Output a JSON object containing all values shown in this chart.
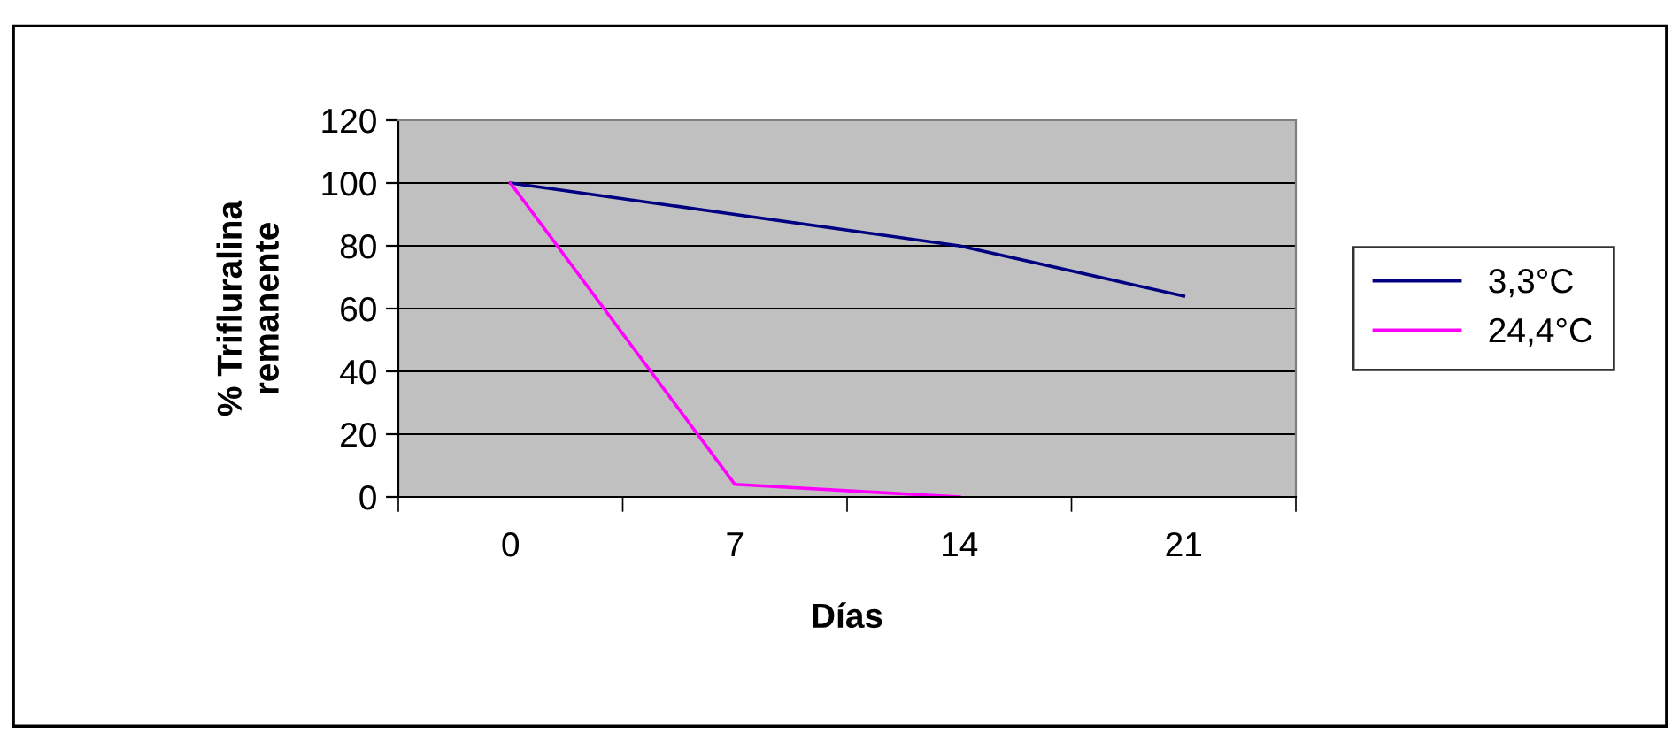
{
  "chart_data": {
    "type": "line",
    "xlabel": "Días",
    "ylabel": "% Trifluralina\nremanente",
    "categories": [
      "0",
      "7",
      "14",
      "21"
    ],
    "series": [
      {
        "name": "3,3°C",
        "color": "#000080",
        "values": [
          100,
          90,
          80,
          64
        ]
      },
      {
        "name": "24,4°C",
        "color": "#ff00ff",
        "values": [
          100,
          4,
          0,
          null
        ]
      }
    ],
    "ylim": [
      0,
      120
    ],
    "yticks": [
      0,
      20,
      40,
      60,
      80,
      100,
      120
    ],
    "grid": "y",
    "legend": "right",
    "marker": "none",
    "line_style": "solid"
  }
}
